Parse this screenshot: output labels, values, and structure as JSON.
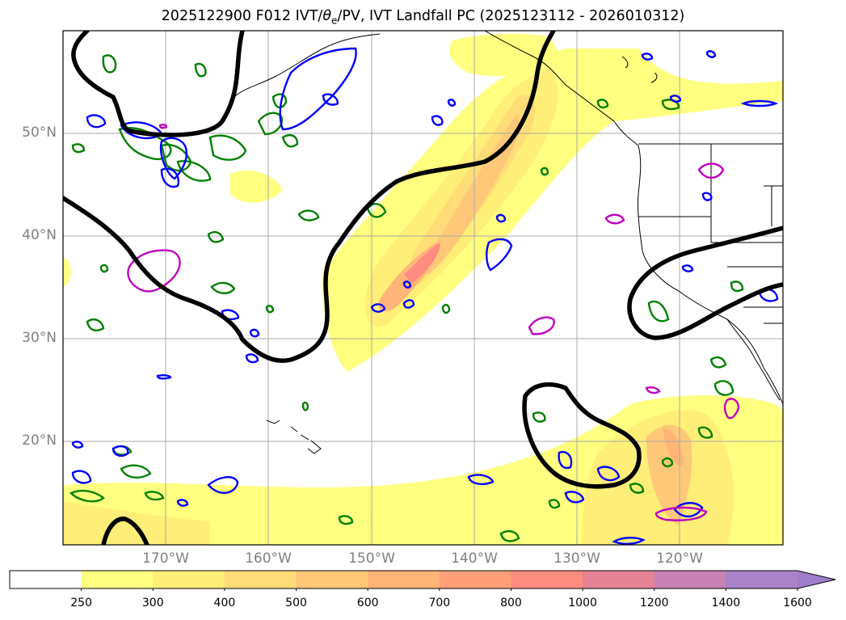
{
  "title": {
    "prefix": "2025122900 F012 IVT/",
    "theta": "θ",
    "theta_sub": "e",
    "suffix": "/PV, IVT Landfall PC (2025123112 - 2026010312)"
  },
  "map": {
    "lat_labels": [
      "50°N",
      "40°N",
      "30°N",
      "20°N"
    ],
    "lon_labels": [
      "170°W",
      "160°W",
      "150°W",
      "140°W",
      "130°W",
      "120°W"
    ],
    "contour_colors": {
      "principal_component": "#000000",
      "theta_e": "#008000",
      "pv_blue": "#0000ff",
      "pv_magenta": "#c000c0"
    }
  },
  "colorbar": {
    "unit_levels": [
      "250",
      "300",
      "400",
      "500",
      "600",
      "700",
      "800",
      "1000",
      "1200",
      "1400",
      "1600"
    ],
    "colors": [
      "#ffffff",
      "#ffff80",
      "#ffee78",
      "#ffdc78",
      "#ffc878",
      "#ffb478",
      "#ffa078",
      "#ff8c80",
      "#e68296",
      "#c882b4",
      "#aa82c8",
      "#a07ecc"
    ],
    "extend": "max"
  }
}
